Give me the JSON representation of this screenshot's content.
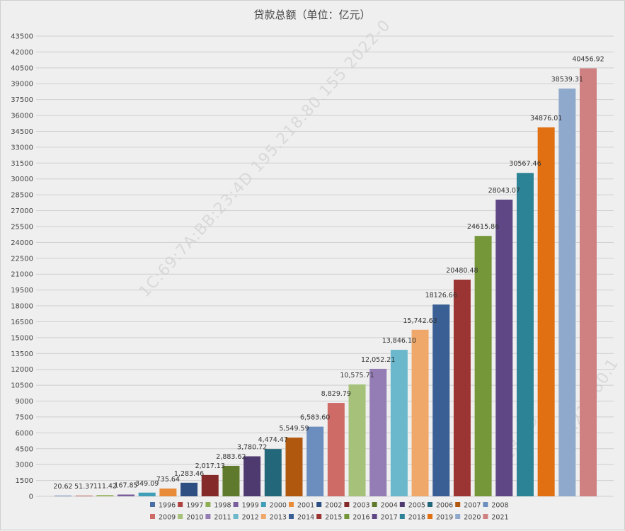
{
  "chart_data": {
    "type": "bar",
    "title": "贷款总额（单位：亿元）",
    "xlabel": "",
    "ylabel": "",
    "ylim": [
      0,
      43500
    ],
    "y_ticks": [
      0,
      1500,
      3000,
      4500,
      6000,
      7500,
      9000,
      10500,
      12000,
      13500,
      15000,
      16500,
      18000,
      19500,
      21000,
      22500,
      24000,
      25500,
      27000,
      28500,
      30000,
      31500,
      33000,
      34500,
      36000,
      37500,
      39000,
      40500,
      42000,
      43500
    ],
    "grid": true,
    "legend_position": "bottom",
    "categories": [
      "1996",
      "1997",
      "1998",
      "1999",
      "2000",
      "2001",
      "2002",
      "2003",
      "2004",
      "2005",
      "2006",
      "2007",
      "2008",
      "2009",
      "2010",
      "2011",
      "2012",
      "2013",
      "2014",
      "2015",
      "2016",
      "2017",
      "2018",
      "2019",
      "2020",
      "2021"
    ],
    "values": [
      20.62,
      51.37,
      111.42,
      167.85,
      349.09,
      735.64,
      1283.46,
      2017.13,
      2883.62,
      3780.72,
      4474.47,
      5549.59,
      6583.6,
      8829.79,
      10575.71,
      12052.21,
      13846.1,
      15742.63,
      18126.66,
      20480.48,
      24615.86,
      28043.07,
      30567.46,
      34876.01,
      38539.31,
      40456.92
    ],
    "data_labels": [
      "20.62",
      "51.37",
      "111.42",
      "167.85",
      "349.09",
      "735.64",
      "1,283.46",
      "2,017.13",
      "2,883.62",
      "3,780.72",
      "4,474.47",
      "5,549.59",
      "6,583.60",
      "8,829.79",
      "10,575.71",
      "12,052.21",
      "13,846.10",
      "15,742.63",
      "18126.66",
      "20480.48",
      "24615.86",
      "28043.07",
      "30567.46",
      "34876.01",
      "38539.31",
      "40456.92"
    ],
    "colors": [
      "#4a6fa5",
      "#b0433f",
      "#8fad52",
      "#7a5f9c",
      "#3f9fb8",
      "#e88c3a",
      "#2d4f82",
      "#842b29",
      "#5f7a2c",
      "#4f3a70",
      "#23677a",
      "#b1580f",
      "#6b8ebf",
      "#cf6b67",
      "#a6c27a",
      "#947db5",
      "#6bb7cc",
      "#f0a86a",
      "#3a5f94",
      "#9b3533",
      "#76963a",
      "#5f4785",
      "#2d8396",
      "#e07011",
      "#8ea9cb",
      "#cf8080"
    ]
  },
  "watermark": {
    "text_main": "1C:69:7A:BB:23:4D 195.218.80.155 2022-0",
    "text_right": "2.218.80.1",
    "text_bottom": "23:4D"
  }
}
